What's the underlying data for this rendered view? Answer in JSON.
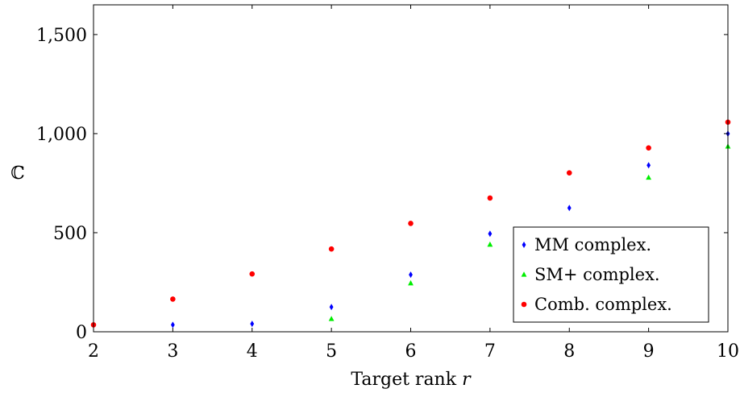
{
  "chart_data": {
    "type": "scatter",
    "xlabel": "Target rank",
    "xlabel_var": "r",
    "ylabel": "ℂ",
    "xlim": [
      2,
      10
    ],
    "ylim": [
      0,
      1650
    ],
    "x_ticks": [
      2,
      3,
      4,
      5,
      6,
      7,
      8,
      9,
      10
    ],
    "y_ticks": [
      0,
      500,
      1000,
      1500
    ],
    "y_tick_labels": [
      "0",
      "500",
      "1,000",
      "1,500"
    ],
    "grid": false,
    "legend_position": "bottom-right",
    "series": [
      {
        "name": "MM complex.",
        "marker": "diamond",
        "color": "#0000ff",
        "points": [
          [
            3,
            35
          ],
          [
            4,
            40
          ],
          [
            5,
            125
          ],
          [
            6,
            288
          ],
          [
            7,
            495
          ],
          [
            8,
            625
          ],
          [
            9,
            840
          ],
          [
            10,
            1000
          ]
        ]
      },
      {
        "name": "SM+ complex.",
        "marker": "triangle",
        "color": "#00ee00",
        "points": [
          [
            5,
            65
          ],
          [
            6,
            245
          ],
          [
            7,
            440
          ],
          [
            9,
            778
          ],
          [
            10,
            935
          ]
        ]
      },
      {
        "name": "Comb. complex.",
        "marker": "circle",
        "color": "#ff0000",
        "points": [
          [
            2,
            35
          ],
          [
            3,
            165
          ],
          [
            4,
            292
          ],
          [
            5,
            418
          ],
          [
            6,
            547
          ],
          [
            7,
            675
          ],
          [
            8,
            802
          ],
          [
            9,
            928
          ],
          [
            10,
            1058
          ]
        ]
      }
    ]
  }
}
